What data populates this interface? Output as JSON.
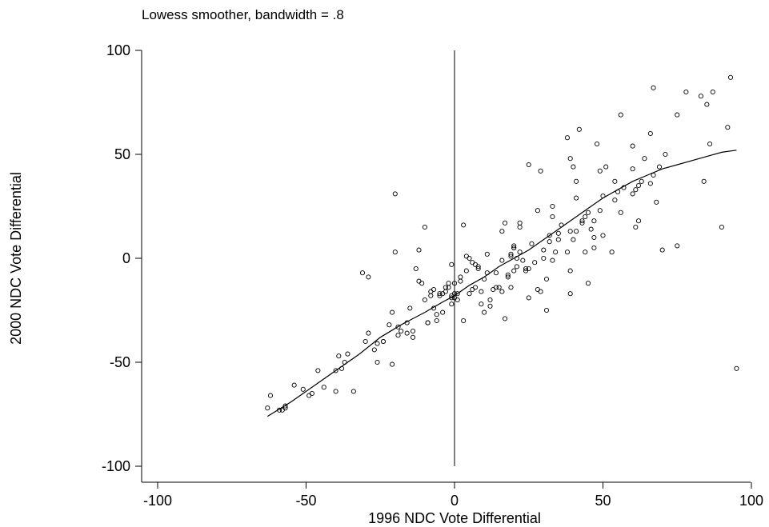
{
  "chart_data": {
    "type": "scatter",
    "subtitle": "Lowess smoother, bandwidth = .8",
    "xlabel": "1996 NDC Vote Differential",
    "ylabel": "2000 NDC Vote Differential",
    "xlim": [
      -100,
      100
    ],
    "ylim": [
      -100,
      100
    ],
    "xticks": [
      "-100",
      "-50",
      "0",
      "50",
      "100"
    ],
    "yticks": [
      "-100",
      "-50",
      "0",
      "50",
      "100"
    ],
    "xtick_values": [
      -100,
      -50,
      0,
      50,
      100
    ],
    "ytick_values": [
      -100,
      -50,
      0,
      50,
      100
    ],
    "reference_line_x": 0,
    "grid": false,
    "points": [
      [
        -63,
        -72
      ],
      [
        -62,
        -66
      ],
      [
        -59,
        -73
      ],
      [
        -58,
        -73
      ],
      [
        -57,
        -72
      ],
      [
        -57,
        -71
      ],
      [
        -54,
        -61
      ],
      [
        -51,
        -63
      ],
      [
        -49,
        -66
      ],
      [
        -48,
        -65
      ],
      [
        -46,
        -54
      ],
      [
        -44,
        -62
      ],
      [
        -40,
        -54
      ],
      [
        -40,
        -64
      ],
      [
        -39,
        -47
      ],
      [
        -38,
        -53
      ],
      [
        -37,
        -50
      ],
      [
        -36,
        -46
      ],
      [
        -34,
        -64
      ],
      [
        -30,
        -40
      ],
      [
        -29,
        -36
      ],
      [
        -31,
        -7
      ],
      [
        -29,
        -9
      ],
      [
        -27,
        -44
      ],
      [
        -26,
        -50
      ],
      [
        -26,
        -41
      ],
      [
        -24,
        -40
      ],
      [
        -24,
        -40
      ],
      [
        -22,
        -32
      ],
      [
        -21,
        -26
      ],
      [
        -21,
        -51
      ],
      [
        -20,
        3
      ],
      [
        -20,
        31
      ],
      [
        -19,
        -33
      ],
      [
        -19,
        -37
      ],
      [
        -18,
        -35
      ],
      [
        -16,
        -36
      ],
      [
        -16,
        -31
      ],
      [
        -15,
        -24
      ],
      [
        -14,
        -38
      ],
      [
        -14,
        -35
      ],
      [
        -13,
        -5
      ],
      [
        -12,
        4
      ],
      [
        -12,
        -11
      ],
      [
        -11,
        -12
      ],
      [
        -10,
        15
      ],
      [
        -10,
        -20
      ],
      [
        -9,
        -31
      ],
      [
        -9,
        -31
      ],
      [
        -8,
        -16
      ],
      [
        -8,
        -18
      ],
      [
        -7,
        -24
      ],
      [
        -7,
        -15
      ],
      [
        -6,
        -30
      ],
      [
        -6,
        -27
      ],
      [
        -5,
        -18
      ],
      [
        -5,
        -17
      ],
      [
        -4,
        -26
      ],
      [
        -4,
        -17
      ],
      [
        -3,
        -16
      ],
      [
        -3,
        -14
      ],
      [
        -2,
        -12
      ],
      [
        -2,
        -14
      ],
      [
        -1,
        -19
      ],
      [
        -1,
        -22
      ],
      [
        -1,
        -18
      ],
      [
        -1,
        -3
      ],
      [
        0,
        -17
      ],
      [
        0,
        -12
      ],
      [
        0,
        -19
      ],
      [
        1,
        -20
      ],
      [
        1,
        -17
      ],
      [
        2,
        -11
      ],
      [
        2,
        -9
      ],
      [
        3,
        -30
      ],
      [
        3,
        16
      ],
      [
        4,
        1
      ],
      [
        4,
        -6
      ],
      [
        5,
        0
      ],
      [
        5,
        -17
      ],
      [
        6,
        -2
      ],
      [
        6,
        -15
      ],
      [
        7,
        -3
      ],
      [
        7,
        -14
      ],
      [
        8,
        -5
      ],
      [
        8,
        -4
      ],
      [
        9,
        -16
      ],
      [
        9,
        -22
      ],
      [
        10,
        -10
      ],
      [
        10,
        -26
      ],
      [
        11,
        -7
      ],
      [
        11,
        2
      ],
      [
        12,
        -23
      ],
      [
        12,
        -20
      ],
      [
        13,
        -15
      ],
      [
        14,
        -7
      ],
      [
        14,
        -14
      ],
      [
        15,
        -14
      ],
      [
        16,
        -1
      ],
      [
        16,
        13
      ],
      [
        16,
        -16
      ],
      [
        17,
        17
      ],
      [
        17,
        -29
      ],
      [
        18,
        -9
      ],
      [
        18,
        -8
      ],
      [
        19,
        1
      ],
      [
        19,
        2
      ],
      [
        19,
        -14
      ],
      [
        20,
        6
      ],
      [
        20,
        5
      ],
      [
        20,
        5
      ],
      [
        20,
        -6
      ],
      [
        21,
        0
      ],
      [
        21,
        -4
      ],
      [
        22,
        15
      ],
      [
        22,
        17
      ],
      [
        22,
        3
      ],
      [
        23,
        -1
      ],
      [
        24,
        -5
      ],
      [
        24,
        -6
      ],
      [
        25,
        45
      ],
      [
        25,
        -5
      ],
      [
        25,
        -19
      ],
      [
        26,
        7
      ],
      [
        27,
        -2
      ],
      [
        28,
        23
      ],
      [
        28,
        -15
      ],
      [
        29,
        42
      ],
      [
        29,
        -16
      ],
      [
        30,
        0
      ],
      [
        30,
        4
      ],
      [
        31,
        -10
      ],
      [
        31,
        -25
      ],
      [
        32,
        11
      ],
      [
        32,
        8
      ],
      [
        33,
        25
      ],
      [
        33,
        20
      ],
      [
        33,
        -1
      ],
      [
        34,
        3
      ],
      [
        35,
        9
      ],
      [
        35,
        12
      ],
      [
        36,
        16
      ],
      [
        38,
        3
      ],
      [
        38,
        58
      ],
      [
        39,
        48
      ],
      [
        39,
        13
      ],
      [
        39,
        -6
      ],
      [
        39,
        -17
      ],
      [
        40,
        44
      ],
      [
        40,
        9
      ],
      [
        41,
        13
      ],
      [
        41,
        37
      ],
      [
        41,
        29
      ],
      [
        42,
        62
      ],
      [
        43,
        18
      ],
      [
        43,
        17
      ],
      [
        44,
        20
      ],
      [
        44,
        3
      ],
      [
        45,
        22
      ],
      [
        45,
        -12
      ],
      [
        46,
        14
      ],
      [
        47,
        10
      ],
      [
        47,
        5
      ],
      [
        47,
        18
      ],
      [
        48,
        55
      ],
      [
        49,
        23
      ],
      [
        49,
        42
      ],
      [
        50,
        30
      ],
      [
        50,
        11
      ],
      [
        51,
        44
      ],
      [
        53,
        3
      ],
      [
        54,
        37
      ],
      [
        54,
        28
      ],
      [
        55,
        32
      ],
      [
        56,
        69
      ],
      [
        56,
        22
      ],
      [
        57,
        34
      ],
      [
        60,
        43
      ],
      [
        60,
        31
      ],
      [
        60,
        54
      ],
      [
        61,
        15
      ],
      [
        61,
        33
      ],
      [
        62,
        18
      ],
      [
        62,
        35
      ],
      [
        63,
        37
      ],
      [
        64,
        48
      ],
      [
        66,
        36
      ],
      [
        66,
        60
      ],
      [
        67,
        82
      ],
      [
        67,
        40
      ],
      [
        68,
        27
      ],
      [
        69,
        44
      ],
      [
        70,
        4
      ],
      [
        71,
        50
      ],
      [
        75,
        6
      ],
      [
        75,
        69
      ],
      [
        78,
        80
      ],
      [
        83,
        78
      ],
      [
        84,
        37
      ],
      [
        85,
        74
      ],
      [
        86,
        55
      ],
      [
        87,
        80
      ],
      [
        90,
        15
      ],
      [
        92,
        63
      ],
      [
        93,
        87
      ],
      [
        95,
        -53
      ]
    ],
    "lowess": [
      [
        -63,
        -76
      ],
      [
        -55,
        -69
      ],
      [
        -47,
        -61
      ],
      [
        -40,
        -54
      ],
      [
        -32,
        -46
      ],
      [
        -25,
        -38
      ],
      [
        -18,
        -32
      ],
      [
        -10,
        -26
      ],
      [
        -4,
        -21
      ],
      [
        0,
        -18
      ],
      [
        5,
        -13
      ],
      [
        10,
        -9
      ],
      [
        15,
        -4
      ],
      [
        20,
        0
      ],
      [
        25,
        4
      ],
      [
        30,
        9
      ],
      [
        35,
        14
      ],
      [
        40,
        19
      ],
      [
        45,
        24
      ],
      [
        50,
        29
      ],
      [
        55,
        33
      ],
      [
        60,
        37
      ],
      [
        65,
        40
      ],
      [
        70,
        43
      ],
      [
        75,
        45
      ],
      [
        80,
        47
      ],
      [
        85,
        49
      ],
      [
        90,
        51
      ],
      [
        95,
        52
      ]
    ]
  }
}
